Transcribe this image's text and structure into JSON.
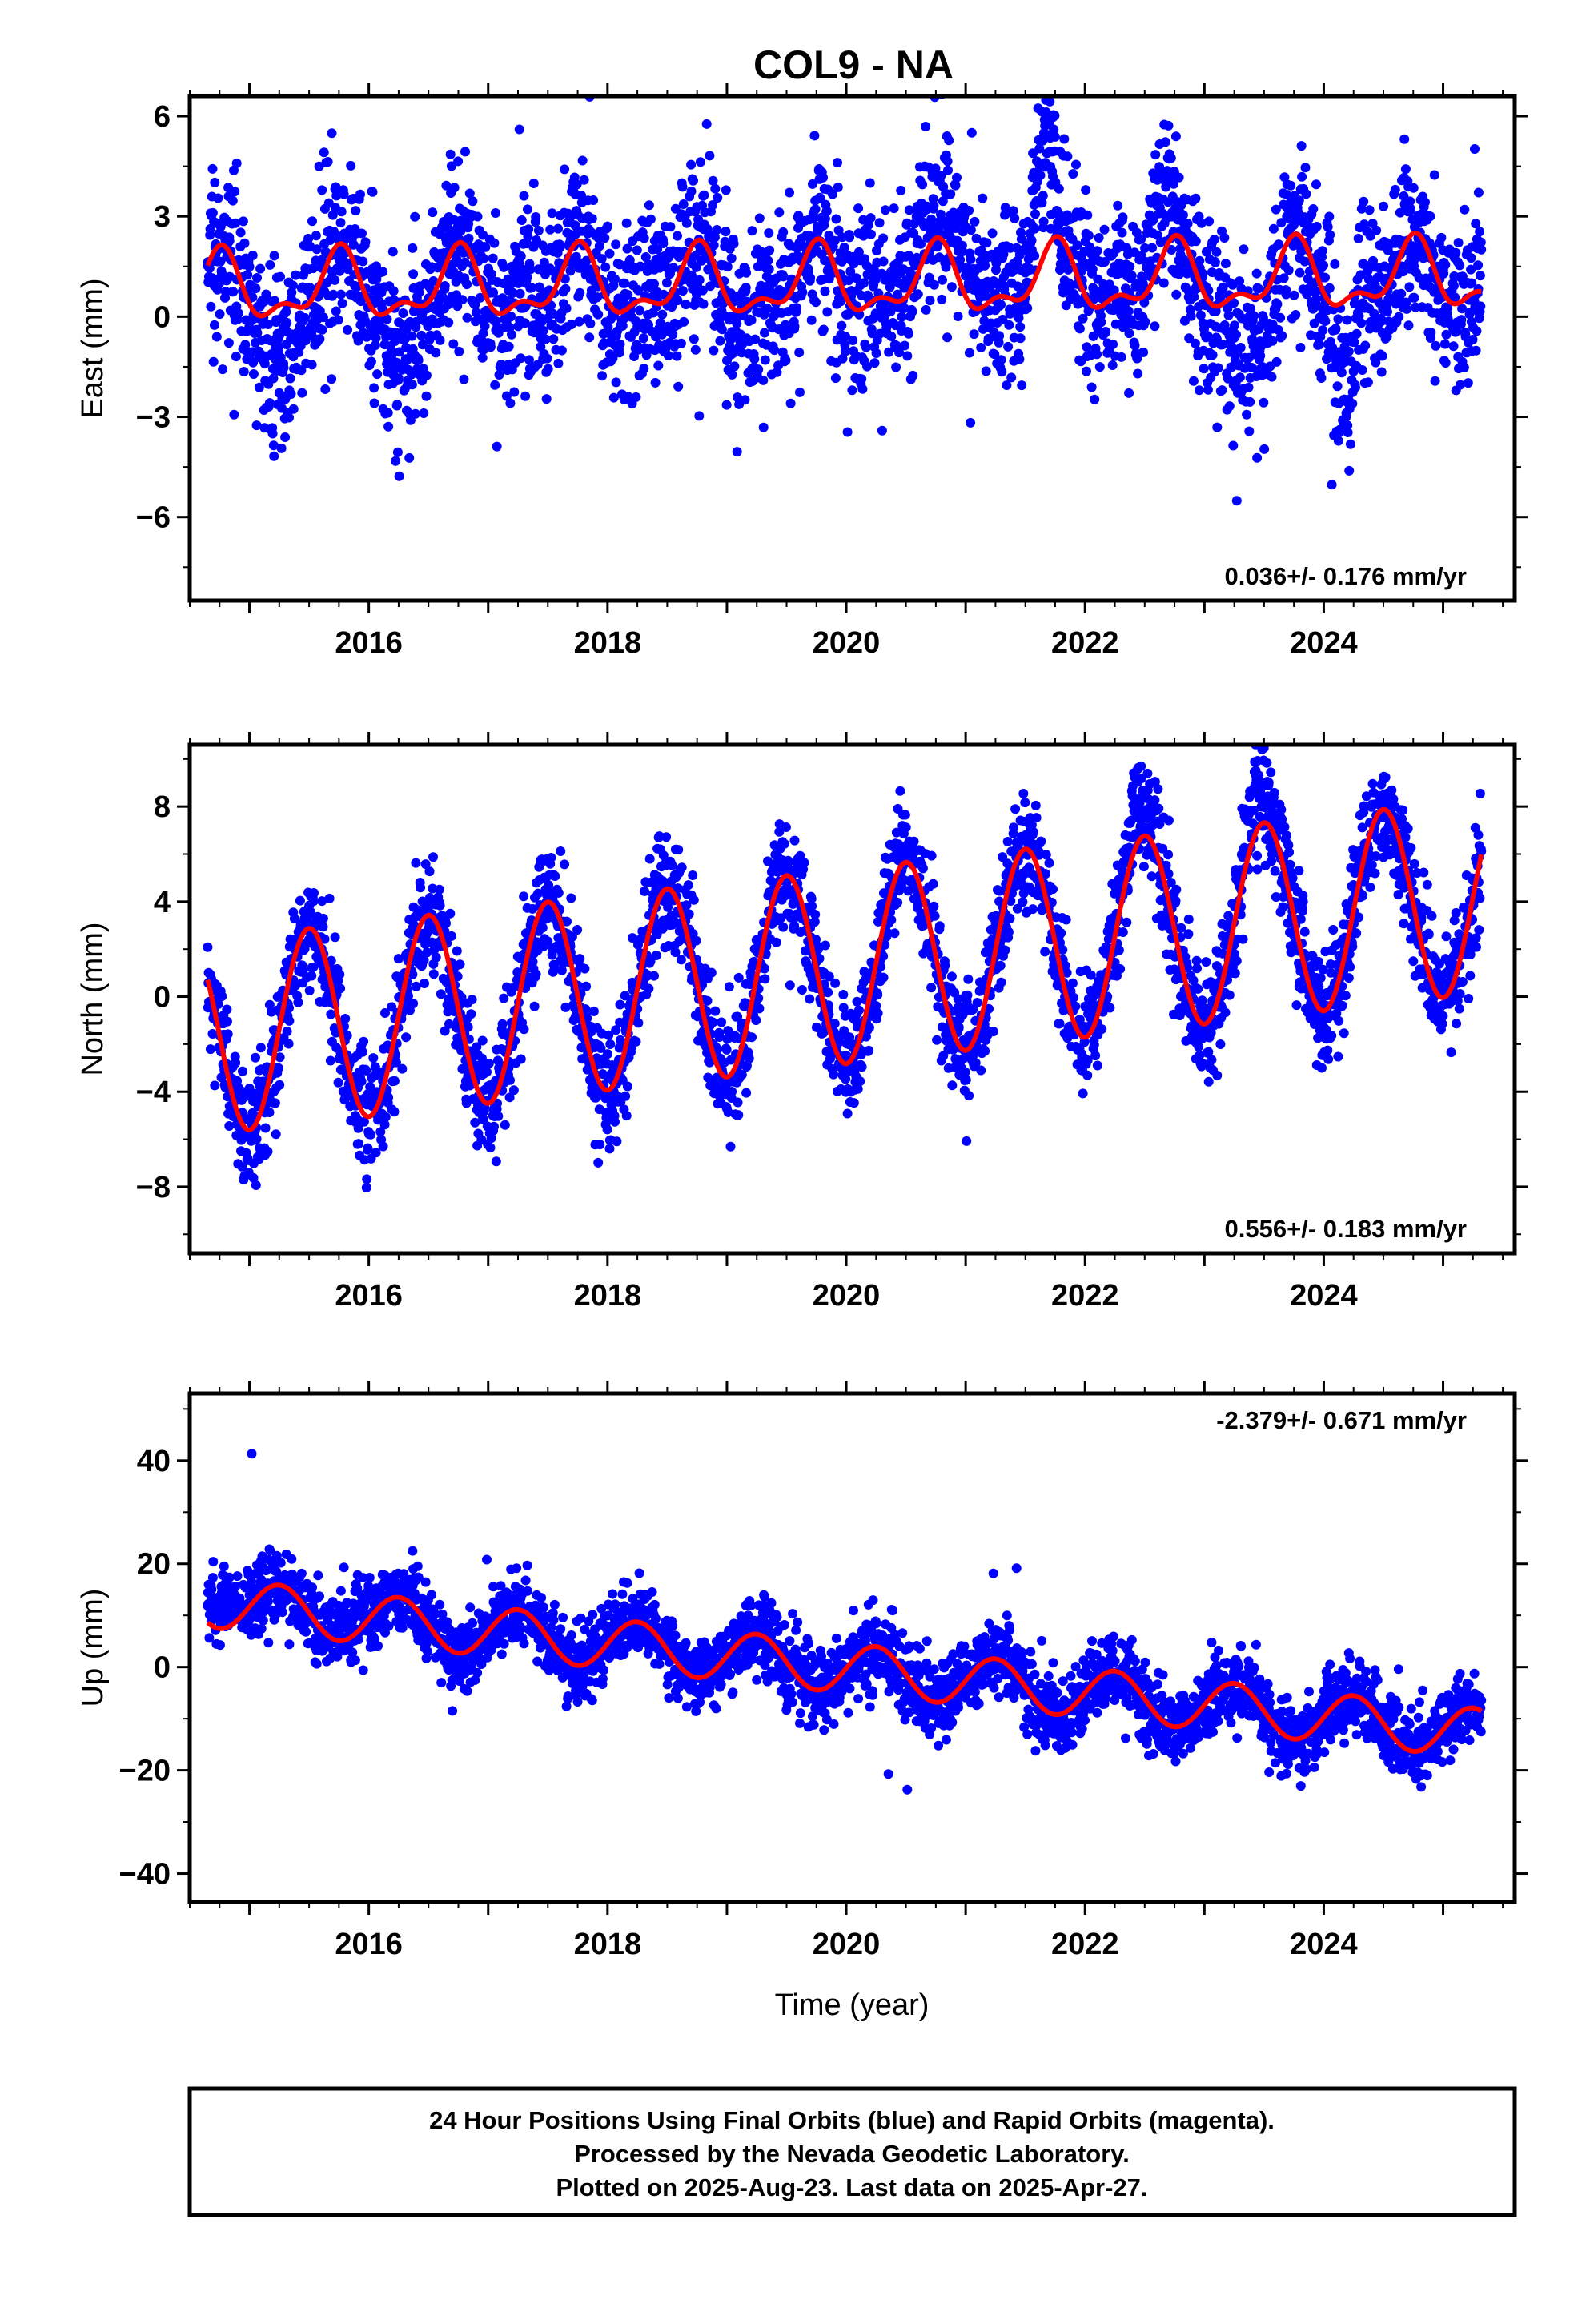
{
  "chart_data": {
    "type": "scatter",
    "title": "COL9 - NA",
    "xlabel": "Time (year)",
    "x_ticks": [
      2016,
      2018,
      2020,
      2022,
      2024
    ],
    "xlim": [
      2014.5,
      2025.6
    ],
    "data_span": [
      2014.65,
      2025.32
    ],
    "colors": {
      "observations": "#0000ff",
      "model": "#ff0000"
    },
    "panels": [
      {
        "name": "east",
        "ylabel": "East (mm)",
        "ylim": [
          -8.5,
          6.6
        ],
        "y_ticks": [
          6,
          3,
          0,
          -3,
          -6
        ],
        "rate_text": "0.036+/- 0.176 mm/yr",
        "rate_position": "bottom-right",
        "model": {
          "offset": 0.8,
          "trend_mm_per_yr": 0.036,
          "annual_amp": 0.9,
          "annual_phase_yr": 0.5,
          "semiannual_amp": 0.45,
          "semiannual_phase_yr": 0.15
        },
        "scatter_sd": 1.3,
        "anomalies": [
          {
            "from": 2015.0,
            "to": 2015.5,
            "shift": -1.5
          },
          {
            "from": 2016.1,
            "to": 2016.5,
            "shift": -1.5
          },
          {
            "from": 2020.5,
            "to": 2021.3,
            "shift": 1.3
          },
          {
            "from": 2021.5,
            "to": 2021.8,
            "shift": 3.0
          },
          {
            "from": 2022.5,
            "to": 2022.8,
            "shift": 1.8
          },
          {
            "from": 2023.1,
            "to": 2023.6,
            "shift": -1.8
          },
          {
            "from": 2024.05,
            "to": 2024.3,
            "shift": -3.0
          }
        ]
      },
      {
        "name": "north",
        "ylabel": "North (mm)",
        "ylim": [
          -10.8,
          10.6
        ],
        "y_ticks": [
          8,
          4,
          0,
          -4,
          -8
        ],
        "rate_text": "0.556+/- 0.183 mm/yr",
        "rate_position": "bottom-right",
        "model": {
          "offset": -1.7,
          "trend_mm_per_yr": 0.556,
          "annual_amp": 4.1,
          "annual_phase_yr": 0.25,
          "semiannual_amp": 0.0,
          "semiannual_phase_yr": 0.0
        },
        "scatter_sd": 1.2,
        "anomalies": [
          {
            "from": 2022.3,
            "to": 2022.6,
            "shift": 1.5
          },
          {
            "from": 2023.3,
            "to": 2023.6,
            "shift": 1.5
          }
        ]
      },
      {
        "name": "up",
        "ylabel": "Up (mm)",
        "ylim": [
          -45.5,
          53
        ],
        "y_ticks": [
          40,
          20,
          0,
          -20,
          -40
        ],
        "rate_text": "-2.379+/- 0.671 mm/yr",
        "rate_position": "top-right",
        "model": {
          "offset": 12.5,
          "trend_mm_per_yr": -2.379,
          "annual_amp": 4.8,
          "annual_phase_yr": 0.0,
          "semiannual_amp": 0.0,
          "semiannual_phase_yr": 0.0
        },
        "scatter_sd": 3.5,
        "anomalies": [
          {
            "from": 2014.6,
            "to": 2015.0,
            "shift": 5.0
          },
          {
            "from": 2015.6,
            "to": 2016.0,
            "shift": 4.0
          }
        ]
      }
    ]
  },
  "footer": {
    "line1": "24 Hour Positions Using Final Orbits (blue) and Rapid Orbits (magenta).",
    "line2": "Processed by the Nevada Geodetic Laboratory.",
    "line3": "Plotted on 2025-Aug-23. Last data on 2025-Apr-27."
  }
}
